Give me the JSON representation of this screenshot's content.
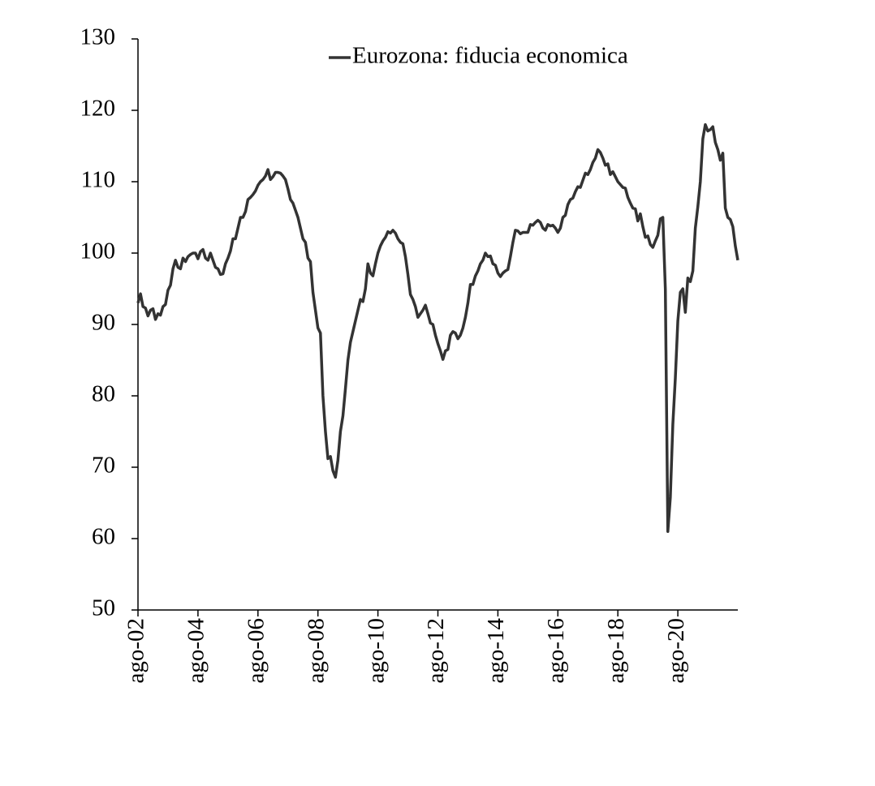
{
  "chart_data": {
    "type": "line",
    "categories": [
      "ago-02",
      null,
      null,
      null,
      null,
      null,
      null,
      null,
      null,
      null,
      null,
      null,
      null,
      null,
      null,
      null,
      null,
      null,
      null,
      null,
      null,
      null,
      null,
      null,
      "ago-04",
      null,
      null,
      null,
      null,
      null,
      null,
      null,
      null,
      null,
      null,
      null,
      null,
      null,
      null,
      null,
      null,
      null,
      null,
      null,
      null,
      null,
      null,
      null,
      "ago-06",
      null,
      null,
      null,
      null,
      null,
      null,
      null,
      null,
      null,
      null,
      null,
      null,
      null,
      null,
      null,
      null,
      null,
      null,
      null,
      null,
      null,
      null,
      null,
      "ago-08",
      null,
      null,
      null,
      null,
      null,
      null,
      null,
      null,
      null,
      null,
      null,
      null,
      null,
      null,
      null,
      null,
      null,
      null,
      null,
      null,
      null,
      null,
      null,
      "ago-10",
      null,
      null,
      null,
      null,
      null,
      null,
      null,
      null,
      null,
      null,
      null,
      null,
      null,
      null,
      null,
      null,
      null,
      null,
      null,
      null,
      null,
      null,
      null,
      "ago-12",
      null,
      null,
      null,
      null,
      null,
      null,
      null,
      null,
      null,
      null,
      null,
      null,
      null,
      null,
      null,
      null,
      null,
      null,
      null,
      null,
      null,
      null,
      null,
      "ago-14",
      null,
      null,
      null,
      null,
      null,
      null,
      null,
      null,
      null,
      null,
      null,
      null,
      null,
      null,
      null,
      null,
      null,
      null,
      null,
      null,
      null,
      null,
      null,
      "ago-16",
      null,
      null,
      null,
      null,
      null,
      null,
      null,
      null,
      null,
      null,
      null,
      null,
      null,
      null,
      null,
      null,
      null,
      null,
      null,
      null,
      null,
      null,
      null,
      "ago-18",
      null,
      null,
      null,
      null,
      null,
      null,
      null,
      null,
      null,
      null,
      null,
      null,
      null,
      null,
      null,
      null,
      null,
      null,
      null,
      null,
      null,
      null,
      null,
      "ago-20",
      null,
      null,
      null,
      null,
      null,
      null,
      null,
      null,
      null,
      null,
      null,
      null,
      null,
      null,
      null,
      null,
      null,
      null,
      null,
      null,
      null,
      null,
      null,
      null
    ],
    "series": [
      {
        "name": "Eurozona: fiducia economica",
        "color": "#333333",
        "values": [
          93,
          94.3,
          92.5,
          92.3,
          91.2,
          92,
          92.2,
          90.7,
          91.5,
          91.3,
          92.5,
          92.8,
          94.8,
          95.5,
          97.8,
          99,
          98,
          97.8,
          99.3,
          98.8,
          99.5,
          99.8,
          100,
          100,
          99.2,
          100.2,
          100.5,
          99.3,
          99,
          100,
          99,
          98,
          97.8,
          97,
          97.1,
          98.5,
          99.3,
          100.3,
          102,
          102,
          103.5,
          105,
          105,
          105.8,
          107.5,
          107.8,
          108.2,
          108.7,
          109.5,
          110,
          110.3,
          110.8,
          111.7,
          110.3,
          110.7,
          111.3,
          111.3,
          111.2,
          110.8,
          110.3,
          109,
          107.5,
          107,
          106,
          105,
          103.5,
          102,
          101.5,
          99.3,
          98.8,
          94.5,
          92,
          89.5,
          88.8,
          80,
          75,
          71.2,
          71.5,
          69.5,
          68.6,
          71,
          75,
          77.2,
          81,
          85,
          87.5,
          89,
          90.5,
          92,
          93.5,
          93.2,
          95,
          98.5,
          97.2,
          96.8,
          98.5,
          100,
          101,
          101.7,
          102.2,
          103,
          102.8,
          103.2,
          102.8,
          102,
          101.5,
          101.3,
          99.5,
          97,
          94.2,
          93.5,
          92.5,
          91,
          91.5,
          92,
          92.7,
          91.5,
          90.2,
          90,
          88.5,
          87.3,
          86.3,
          85.1,
          86.3,
          86.5,
          88.5,
          89,
          88.8,
          88,
          88.5,
          89.5,
          91,
          93,
          95.6,
          95.6,
          96.8,
          97.5,
          98.5,
          99,
          100,
          99.5,
          99.6,
          98.5,
          98.3,
          97.2,
          96.7,
          97.2,
          97.5,
          97.7,
          99.5,
          101.5,
          103.2,
          103.1,
          102.7,
          102.9,
          102.9,
          102.9,
          104,
          103.9,
          104.3,
          104.6,
          104.3,
          103.5,
          103.2,
          104,
          103.8,
          103.9,
          103.5,
          102.9,
          103.5,
          105,
          105.3,
          106.8,
          107.5,
          107.7,
          108.6,
          109.3,
          109.2,
          110.2,
          111.2,
          111,
          111.7,
          112.7,
          113.3,
          114.5,
          114.1,
          113.3,
          112.3,
          112.5,
          111,
          111.4,
          110.7,
          110,
          109.6,
          109.2,
          109.1,
          107.8,
          107,
          106.3,
          106.2,
          104.5,
          105.5,
          103.7,
          102.2,
          102.4,
          101.2,
          100.8,
          101.7,
          102.5,
          104.8,
          105,
          95,
          61,
          65.8,
          76,
          82.5,
          90.5,
          94.5,
          95,
          91.7,
          96.5,
          96,
          97.5,
          103.5,
          106.5,
          110,
          116,
          118,
          117.1,
          117.3,
          117.7,
          115.5,
          114.5,
          113,
          114,
          106.3,
          105,
          104.7,
          103.7,
          101,
          99
        ]
      }
    ],
    "ylim": [
      50,
      130
    ],
    "yticks": [
      50,
      60,
      70,
      80,
      90,
      100,
      110,
      120,
      130
    ],
    "legend": "top"
  }
}
